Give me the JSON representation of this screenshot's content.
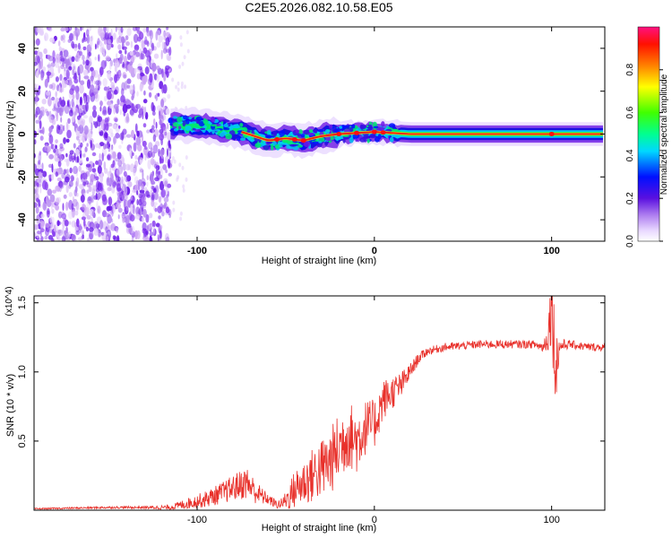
{
  "figure_title": "C2E5.2026.082.10.58.E05",
  "chart_data": [
    {
      "type": "heatmap",
      "title": "C2E5.2026.082.10.58.E05",
      "xlabel": "Height of straight line (km)",
      "ylabel": "Frequency (Hz)",
      "xlim": [
        -192,
        130
      ],
      "ylim": [
        -50,
        50
      ],
      "x_ticks": [
        {
          "value": -100,
          "label": "-100"
        },
        {
          "value": 0,
          "label": "0"
        },
        {
          "value": 100,
          "label": "100"
        }
      ],
      "y_ticks": [
        {
          "value": 40,
          "label": "40"
        },
        {
          "value": 20,
          "label": "20"
        },
        {
          "value": 0,
          "label": "0"
        },
        {
          "value": -20,
          "label": "-20"
        },
        {
          "value": -40,
          "label": "-40"
        }
      ],
      "colorbar": {
        "label": "Normalized spectral amplitude",
        "range": [
          0,
          1
        ],
        "ticks": [
          {
            "value": 0.0,
            "label": "0.0"
          },
          {
            "value": 0.2,
            "label": "0.2"
          },
          {
            "value": 0.4,
            "label": "0.4"
          },
          {
            "value": 0.6,
            "label": "0.6"
          },
          {
            "value": 0.8,
            "label": "0.8"
          }
        ]
      },
      "features": {
        "noise_region_x": [
          -192,
          -115
        ],
        "signal_band_center_hz": [
          {
            "x": -115,
            "hz": 4
          },
          {
            "x": -100,
            "hz": 4
          },
          {
            "x": -90,
            "hz": 3
          },
          {
            "x": -75,
            "hz": 1
          },
          {
            "x": -60,
            "hz": -3
          },
          {
            "x": -50,
            "hz": -2
          },
          {
            "x": -40,
            "hz": -3
          },
          {
            "x": -30,
            "hz": -1
          },
          {
            "x": -20,
            "hz": 0
          },
          {
            "x": 0,
            "hz": 1
          },
          {
            "x": 20,
            "hz": 0
          },
          {
            "x": 130,
            "hz": 0
          }
        ]
      }
    },
    {
      "type": "line",
      "xlabel": "Height of straight line (km)",
      "ylabel": "SNR (10 * v/v)",
      "y_multiplier": "(x10^4)",
      "xlim": [
        -192,
        130
      ],
      "ylim": [
        0,
        1.55
      ],
      "x_ticks": [
        {
          "value": -100,
          "label": "-100"
        },
        {
          "value": 0,
          "label": "0"
        },
        {
          "value": 100,
          "label": "100"
        }
      ],
      "y_ticks": [
        {
          "value": 1.5,
          "label": "1.5"
        },
        {
          "value": 1.0,
          "label": "1.0"
        },
        {
          "value": 0.5,
          "label": "0.5"
        }
      ],
      "color": "#e8302a",
      "series": [
        {
          "name": "SNR",
          "x": [
            -192,
            -150,
            -130,
            -115,
            -105,
            -95,
            -85,
            -78,
            -72,
            -66,
            -60,
            -55,
            -52,
            -48,
            -45,
            -40,
            -35,
            -30,
            -25,
            -20,
            -15,
            -10,
            -5,
            0,
            5,
            10,
            15,
            20,
            25,
            30,
            40,
            50,
            60,
            70,
            80,
            90,
            95,
            98,
            100,
            102,
            105,
            110,
            120,
            130
          ],
          "y": [
            0.01,
            0.02,
            0.02,
            0.02,
            0.05,
            0.08,
            0.13,
            0.17,
            0.2,
            0.12,
            0.08,
            0.04,
            0.05,
            0.1,
            0.15,
            0.2,
            0.25,
            0.3,
            0.35,
            0.45,
            0.55,
            0.5,
            0.6,
            0.62,
            0.8,
            0.85,
            0.9,
            1.0,
            1.1,
            1.15,
            1.18,
            1.19,
            1.2,
            1.2,
            1.2,
            1.2,
            1.18,
            1.25,
            1.55,
            1.05,
            1.19,
            1.2,
            1.18,
            1.18
          ],
          "amp": [
            0.005,
            0.008,
            0.01,
            0.02,
            0.04,
            0.06,
            0.08,
            0.1,
            0.12,
            0.08,
            0.04,
            0.03,
            0.04,
            0.1,
            0.14,
            0.17,
            0.2,
            0.22,
            0.24,
            0.26,
            0.25,
            0.24,
            0.2,
            0.18,
            0.15,
            0.12,
            0.1,
            0.06,
            0.04,
            0.03,
            0.03,
            0.03,
            0.03,
            0.03,
            0.03,
            0.03,
            0.04,
            0.1,
            0.35,
            0.3,
            0.05,
            0.03,
            0.03,
            0.03
          ]
        }
      ]
    }
  ]
}
